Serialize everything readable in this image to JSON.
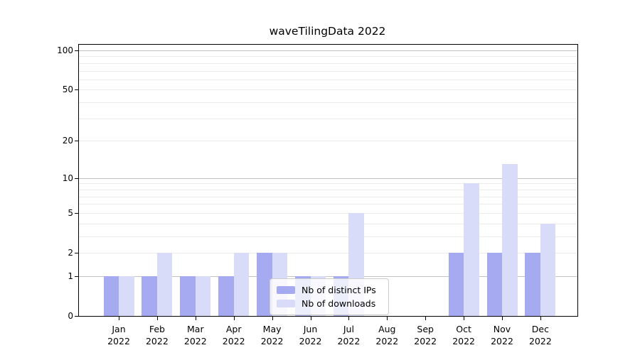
{
  "chart_data": {
    "type": "bar",
    "title": "waveTilingData 2022",
    "categories": [
      "Jan\n2022",
      "Feb\n2022",
      "Mar\n2022",
      "Apr\n2022",
      "May\n2022",
      "Jun\n2022",
      "Jul\n2022",
      "Aug\n2022",
      "Sep\n2022",
      "Oct\n2022",
      "Nov\n2022",
      "Dec\n2022"
    ],
    "series": [
      {
        "name": "Nb of distinct IPs",
        "color": "#a6aaf1",
        "values": [
          1,
          1,
          1,
          1,
          2,
          1,
          1,
          0,
          0,
          2,
          2,
          2
        ]
      },
      {
        "name": "Nb of downloads",
        "color": "#d9dcf9",
        "values": [
          1,
          2,
          1,
          2,
          2,
          1,
          5,
          0,
          0,
          9,
          13,
          4
        ]
      }
    ],
    "yscale": "log1p",
    "ylim": [
      0,
      110
    ],
    "ytick_labels": [
      "0",
      "1",
      "2",
      "5",
      "10",
      "20",
      "50",
      "100"
    ],
    "ytick_values": [
      0,
      1,
      2,
      5,
      10,
      20,
      50,
      100
    ],
    "major_gridlines": [
      1,
      10,
      100
    ],
    "minor_gridlines": [
      2,
      3,
      4,
      5,
      6,
      7,
      8,
      9,
      20,
      30,
      40,
      50,
      60,
      70,
      80,
      90
    ],
    "grid": "on",
    "legend_position": "lower center",
    "colors": {
      "grid_major": "#c2c2c2",
      "grid_minor": "#ebebeb",
      "axis": "#000000",
      "legend_border": "#cccccc"
    }
  }
}
